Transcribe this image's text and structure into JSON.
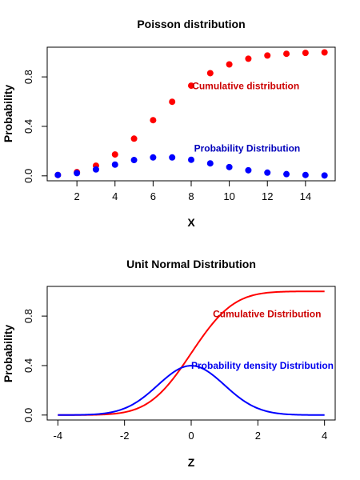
{
  "chart_data": [
    {
      "type": "scatter",
      "title": "Poisson distribution",
      "xlabel": "X",
      "ylabel": "Probability",
      "xlim": [
        0.44,
        15.56
      ],
      "ylim": [
        -0.04,
        1.04
      ],
      "xticks": [
        2,
        4,
        6,
        8,
        10,
        12,
        14
      ],
      "yticks": [
        0.0,
        0.4,
        0.8
      ],
      "ytick_labels": [
        "0.0",
        "0.4",
        "0.8"
      ],
      "series": [
        {
          "name": "Cumulative distribution",
          "color": "#ff0000",
          "x": [
            1,
            2,
            3,
            4,
            5,
            6,
            7,
            8,
            9,
            10,
            11,
            12,
            13,
            14,
            15
          ],
          "y": [
            0.007,
            0.03,
            0.082,
            0.173,
            0.301,
            0.45,
            0.599,
            0.729,
            0.83,
            0.901,
            0.947,
            0.973,
            0.987,
            0.994,
            0.998
          ]
        },
        {
          "name": "Probability Distribution",
          "color": "#0000ff",
          "x": [
            1,
            2,
            3,
            4,
            5,
            6,
            7,
            8,
            9,
            10,
            11,
            12,
            13,
            14,
            15
          ],
          "y": [
            0.007,
            0.022,
            0.052,
            0.091,
            0.128,
            0.149,
            0.149,
            0.13,
            0.101,
            0.071,
            0.045,
            0.026,
            0.014,
            0.007,
            0.003
          ]
        }
      ],
      "annotations": [
        {
          "text": "Cumulative distribution",
          "x": 8.05,
          "y": 0.7,
          "color": "#cc0000"
        },
        {
          "text": "Probability Distribution",
          "x": 8.15,
          "y": 0.195,
          "color": "#0000bb"
        }
      ]
    },
    {
      "type": "line",
      "title": "Unit Normal Distribution",
      "xlabel": "Z",
      "ylabel": "Probability",
      "xlim": [
        -4.32,
        4.32
      ],
      "ylim": [
        -0.04,
        1.04
      ],
      "xticks": [
        -4,
        -2,
        0,
        2,
        4
      ],
      "yticks": [
        0.0,
        0.4,
        0.8
      ],
      "ytick_labels": [
        "0.0",
        "0.4",
        "0.8"
      ],
      "series": [
        {
          "name": "Cumulative Distribution",
          "color": "#ff0000",
          "x": [
            -4,
            -3.5,
            -3,
            -2.5,
            -2,
            -1.5,
            -1,
            -0.5,
            0,
            0.5,
            1,
            1.5,
            2,
            2.5,
            3,
            3.5,
            4
          ],
          "y": [
            3e-05,
            0.0002,
            0.0013,
            0.0062,
            0.0228,
            0.0668,
            0.1587,
            0.3085,
            0.5,
            0.6915,
            0.8413,
            0.9332,
            0.9772,
            0.9938,
            0.9987,
            0.9998,
            0.99997
          ]
        },
        {
          "name": "Probability density Distribution",
          "color": "#0000ff",
          "x": [
            -4,
            -3.5,
            -3,
            -2.5,
            -2,
            -1.5,
            -1,
            -0.5,
            0,
            0.5,
            1,
            1.5,
            2,
            2.5,
            3,
            3.5,
            4
          ],
          "y": [
            0.0001,
            0.0009,
            0.0044,
            0.0175,
            0.054,
            0.1295,
            0.242,
            0.3521,
            0.3989,
            0.3521,
            0.242,
            0.1295,
            0.054,
            0.0175,
            0.0044,
            0.0009,
            0.0001
          ]
        }
      ],
      "annotations": [
        {
          "text": "Cumulative Distribution",
          "x": 0.65,
          "y": 0.79,
          "color": "#cc0000"
        },
        {
          "text": "Probability density Distribution",
          "x": 0.0,
          "y": 0.375,
          "color": "#0000ee"
        }
      ]
    }
  ]
}
